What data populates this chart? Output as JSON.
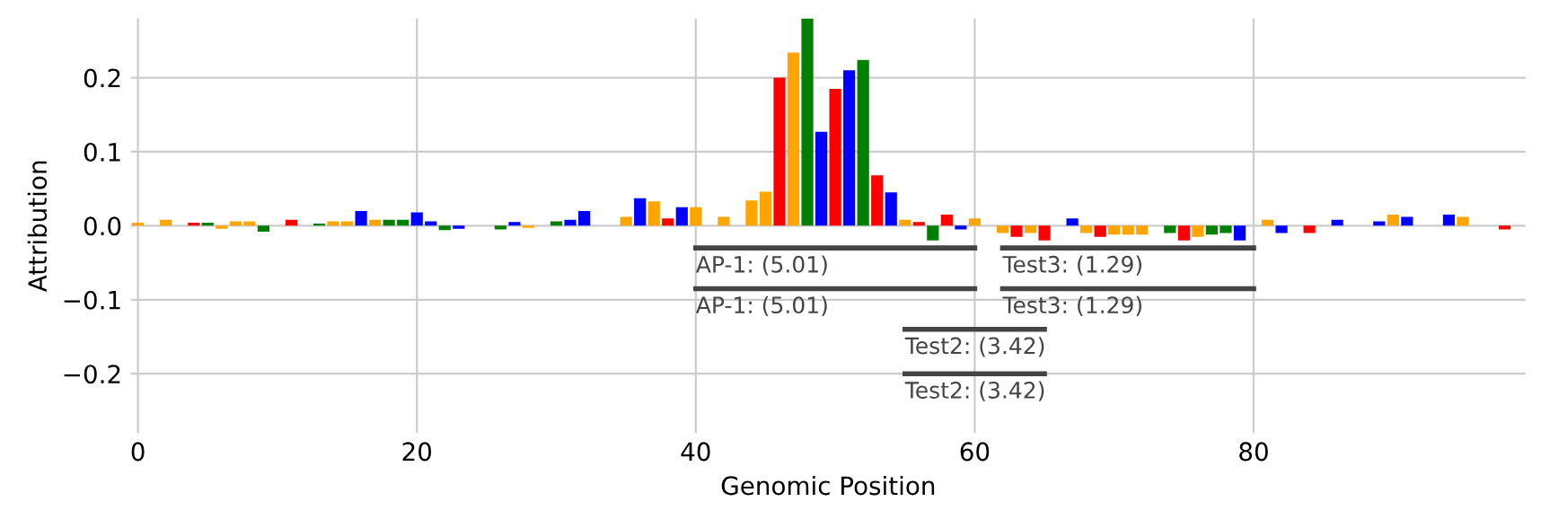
{
  "chart_data": {
    "type": "bar",
    "xlabel": "Genomic Position",
    "ylabel": "Attribution",
    "xlim": [
      -0.5,
      99.5
    ],
    "ylim": [
      -0.28,
      0.28
    ],
    "xticks": [
      0,
      20,
      40,
      60,
      80
    ],
    "yticks": [
      {
        "value": -0.2,
        "label": "−0.2"
      },
      {
        "value": -0.1,
        "label": "−0.1"
      },
      {
        "value": 0.0,
        "label": "0.0"
      },
      {
        "value": 0.1,
        "label": "0.1"
      },
      {
        "value": 0.2,
        "label": "0.2"
      }
    ],
    "grid": true,
    "series": [
      {
        "color": "#008000",
        "x": [
          5,
          9,
          13,
          18,
          19,
          22,
          26,
          30,
          48,
          52,
          57,
          74,
          77,
          78
        ],
        "values": [
          0.004,
          -0.008,
          0.003,
          0.008,
          0.008,
          -0.006,
          -0.005,
          0.006,
          0.28,
          0.224,
          -0.02,
          -0.01,
          -0.012,
          -0.01
        ]
      },
      {
        "color": "#0000ff",
        "x": [
          16,
          20,
          21,
          23,
          27,
          31,
          32,
          36,
          39,
          49,
          51,
          54,
          59,
          67,
          79,
          82,
          86,
          89,
          91,
          94
        ],
        "values": [
          0.02,
          0.018,
          0.006,
          -0.004,
          0.005,
          0.008,
          0.02,
          0.037,
          0.025,
          0.127,
          0.21,
          0.045,
          -0.005,
          0.01,
          -0.02,
          -0.01,
          0.008,
          0.006,
          0.012,
          0.015
        ]
      },
      {
        "color": "#ffa500",
        "x": [
          0,
          2,
          6,
          7,
          8,
          14,
          15,
          17,
          28,
          35,
          37,
          40,
          42,
          44,
          45,
          47,
          55,
          60,
          62,
          64,
          68,
          70,
          71,
          72,
          76,
          81,
          90,
          95
        ],
        "values": [
          0.004,
          0.008,
          -0.004,
          0.006,
          0.006,
          0.006,
          0.006,
          0.008,
          -0.003,
          0.012,
          0.033,
          0.025,
          0.012,
          0.034,
          0.046,
          0.234,
          0.008,
          0.01,
          -0.01,
          -0.01,
          -0.01,
          -0.012,
          -0.012,
          -0.012,
          -0.015,
          0.008,
          0.015,
          0.012
        ]
      },
      {
        "color": "#ff0000",
        "x": [
          4,
          11,
          38,
          46,
          50,
          53,
          56,
          58,
          63,
          65,
          69,
          75,
          84,
          98
        ],
        "values": [
          0.004,
          0.008,
          0.01,
          0.2,
          0.185,
          0.068,
          0.005,
          0.015,
          -0.015,
          -0.02,
          -0.015,
          -0.02,
          -0.01,
          -0.005
        ]
      },
      {
        "type": "line",
        "color": "#444444",
        "x": [
          40,
          60
        ],
        "values": [
          -0.03,
          -0.03
        ]
      },
      {
        "type": "line",
        "color": "#444444",
        "x": [
          40,
          60
        ],
        "values": [
          -0.085,
          -0.085
        ]
      },
      {
        "type": "line",
        "color": "#444444",
        "x": [
          62,
          80
        ],
        "values": [
          -0.03,
          -0.03
        ]
      },
      {
        "type": "line",
        "color": "#444444",
        "x": [
          62,
          80
        ],
        "values": [
          -0.085,
          -0.085
        ]
      },
      {
        "type": "line",
        "color": "#444444",
        "x": [
          55,
          65
        ],
        "values": [
          -0.14,
          -0.14
        ]
      },
      {
        "type": "line",
        "color": "#444444",
        "x": [
          55,
          65
        ],
        "values": [
          -0.2,
          -0.2
        ]
      }
    ],
    "annotations": [
      {
        "text": "AP-1: (5.01)",
        "x": 40,
        "y": -0.03
      },
      {
        "text": "AP-1: (5.01)",
        "x": 40,
        "y": -0.085
      },
      {
        "text": "Test3: (1.29)",
        "x": 62,
        "y": -0.03
      },
      {
        "text": "Test3: (1.29)",
        "x": 62,
        "y": -0.085
      },
      {
        "text": "Test2: (3.42)",
        "x": 55,
        "y": -0.14
      },
      {
        "text": "Test2: (3.42)",
        "x": 55,
        "y": -0.2
      }
    ]
  }
}
